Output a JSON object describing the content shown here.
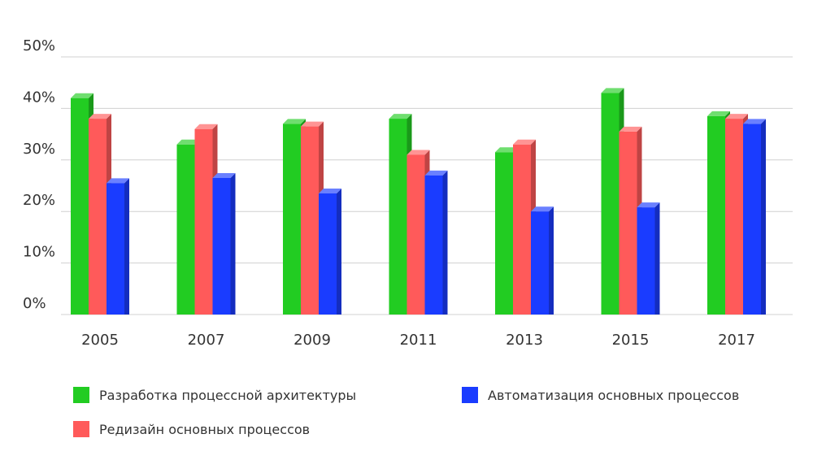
{
  "chart_data": {
    "type": "bar",
    "categories": [
      "2005",
      "2007",
      "2009",
      "2011",
      "2013",
      "2015",
      "2017"
    ],
    "series": [
      {
        "name": "Разработка процессной архитектуры",
        "color": "#22cc22",
        "values": [
          42,
          33,
          37,
          38,
          31.5,
          43,
          38.5
        ]
      },
      {
        "name": "Редизайн основных процессов",
        "color": "#ff5a5a",
        "values": [
          38,
          36,
          36.5,
          31,
          33,
          35.5,
          38
        ]
      },
      {
        "name": "Автоматизация основных процессов",
        "color": "#1a3cff",
        "values": [
          25.5,
          26.5,
          23.5,
          27,
          20,
          20.8,
          37
        ]
      }
    ],
    "ylim": [
      0,
      50
    ],
    "yticks": [
      "0%",
      "10%",
      "20%",
      "30%",
      "40%",
      "50%"
    ],
    "grid": true,
    "legend_position": "bottom"
  }
}
